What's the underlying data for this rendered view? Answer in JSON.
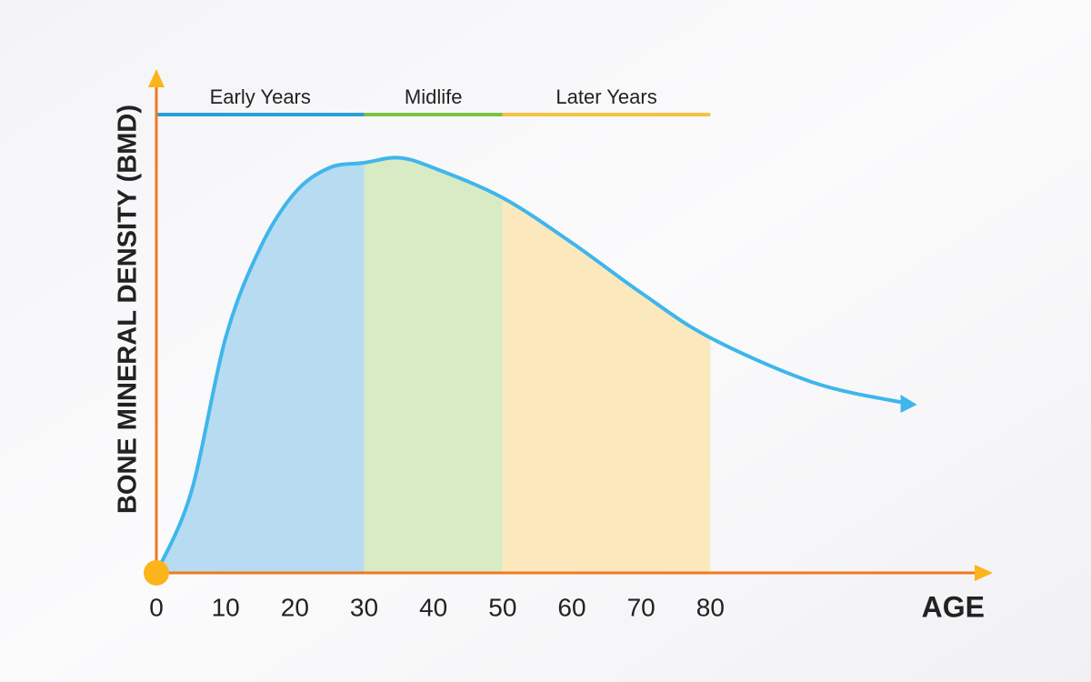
{
  "chart_data": {
    "type": "line",
    "y_label": "BONE MINERAL DENSITY (BMD)",
    "x_label": "AGE",
    "x": [
      0,
      5,
      10,
      15,
      20,
      25,
      30,
      35,
      40,
      50,
      60,
      70,
      80,
      95,
      108
    ],
    "series": [
      {
        "name": "BMD",
        "color": "#3fb6ec",
        "values": [
          0,
          16,
          47,
          65,
          76,
          81,
          82,
          83,
          81,
          75,
          66,
          56,
          47,
          38,
          34
        ]
      }
    ],
    "phases": [
      {
        "label": "Early Years",
        "start": 0,
        "end": 30,
        "color": "#2a9fd6",
        "fill": "#b7dcf1"
      },
      {
        "label": "Midlife",
        "start": 30,
        "end": 50,
        "color": "#7cc243",
        "fill": "#d8ebc4"
      },
      {
        "label": "Later Years",
        "start": 50,
        "end": 80,
        "color": "#f5c242",
        "fill": "#fbe9bd"
      }
    ],
    "xlim": [
      0,
      120
    ],
    "ylim": [
      0,
      100
    ],
    "xticks": [
      0,
      10,
      20,
      30,
      40,
      50,
      60,
      70,
      80
    ],
    "axis_color": "#f07a1e",
    "arrow_color": "#fbb41a"
  }
}
